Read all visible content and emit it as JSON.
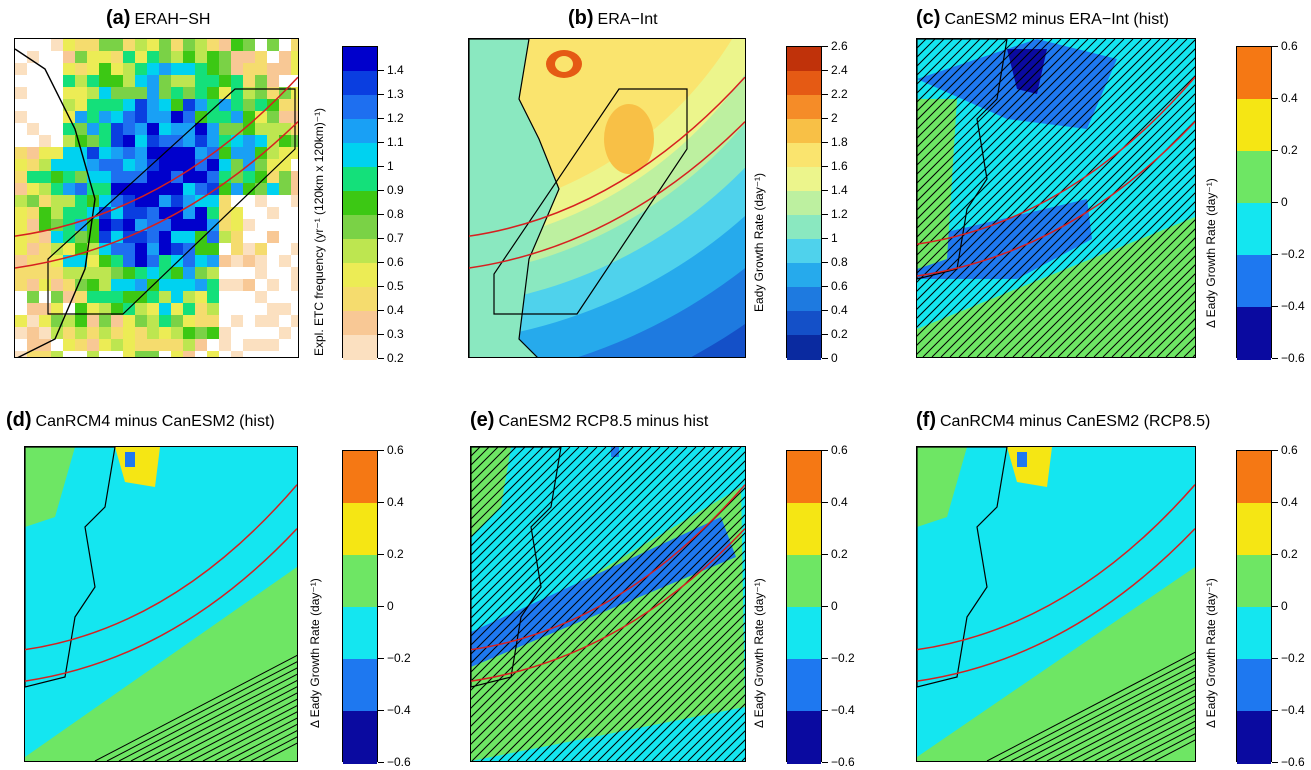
{
  "panels": [
    {
      "letter": "(a)",
      "title": "ERAH−SH",
      "cbar_label": "Expl. ETC frequency (yr⁻¹ (120km x 120km)⁻¹)",
      "ticks": [
        "1.4",
        "1.3",
        "1.2",
        "1.1",
        "1",
        "0.9",
        "0.8",
        "0.7",
        "0.6",
        "0.5",
        "0.4",
        "0.3",
        "0.2"
      ],
      "colors": [
        "#0000cc",
        "#0a3ee0",
        "#1e6ff0",
        "#19a0f5",
        "#00d2f0",
        "#14e07a",
        "#3cc814",
        "#7ad246",
        "#bde650",
        "#ecec55",
        "#f5dc6e",
        "#f8c895",
        "#fbe0c0"
      ],
      "bg": "#ffffff"
    },
    {
      "letter": "(b)",
      "title": "ERA−Int",
      "cbar_label": "Eady Growth Rate (day⁻¹)",
      "ticks": [
        "2.6",
        "2.4",
        "2.2",
        "2",
        "1.8",
        "1.6",
        "1.4",
        "1.2",
        "1",
        "0.8",
        "0.6",
        "0.4",
        "0.2",
        "0"
      ],
      "colors": [
        "#c0320a",
        "#e55a14",
        "#f58c28",
        "#f8c046",
        "#fae46e",
        "#ecf58c",
        "#bdf0a0",
        "#8ae8c0",
        "#4fd2ec",
        "#26aaec",
        "#1e7ae0",
        "#1450c8",
        "#0a2aa0"
      ],
      "bg": "#8ae8c0"
    },
    {
      "letter": "(c)",
      "title": "CanESM2 minus ERA−Int (hist)",
      "cbar_label": "Δ Eady Growth Rate (day⁻¹)",
      "ticks": [
        "0.6",
        "0.4",
        "0.2",
        "0",
        "−0.2",
        "−0.4",
        "−0.6"
      ],
      "colors": [
        "#f57814",
        "#f5e614",
        "#6ee664",
        "#14e6f0",
        "#1e78f0",
        "#0a0aa0"
      ],
      "bg": "#14e6f0"
    },
    {
      "letter": "(d)",
      "title": "CanRCM4 minus CanESM2 (hist)",
      "cbar_label": "Δ Eady Growth Rate (day⁻¹)",
      "ticks": [
        "0.6",
        "0.4",
        "0.2",
        "0",
        "−0.2",
        "−0.4",
        "−0.6"
      ],
      "colors": [
        "#f57814",
        "#f5e614",
        "#6ee664",
        "#14e6f0",
        "#1e78f0",
        "#0a0aa0"
      ],
      "bg": "#6ee664"
    },
    {
      "letter": "(e)",
      "title": "CanESM2 RCP8.5 minus hist",
      "cbar_label": "Δ Eady Growth Rate (day⁻¹)",
      "ticks": [
        "0.6",
        "0.4",
        "0.2",
        "0",
        "−0.2",
        "−0.4",
        "−0.6"
      ],
      "colors": [
        "#f57814",
        "#f5e614",
        "#6ee664",
        "#14e6f0",
        "#1e78f0",
        "#0a0aa0"
      ],
      "bg": "#14e6f0"
    },
    {
      "letter": "(f)",
      "title": "CanRCM4 minus CanESM2 (RCP8.5)",
      "cbar_label": "Δ Eady Growth Rate (day⁻¹)",
      "ticks": [
        "0.6",
        "0.4",
        "0.2",
        "0",
        "−0.2",
        "−0.4",
        "−0.6"
      ],
      "colors": [
        "#f57814",
        "#f5e614",
        "#6ee664",
        "#14e6f0",
        "#1e78f0",
        "#0a0aa0"
      ],
      "bg": "#6ee664"
    }
  ],
  "colors": {
    "storm_track_lines": "#d62020",
    "outline": "#000000"
  }
}
